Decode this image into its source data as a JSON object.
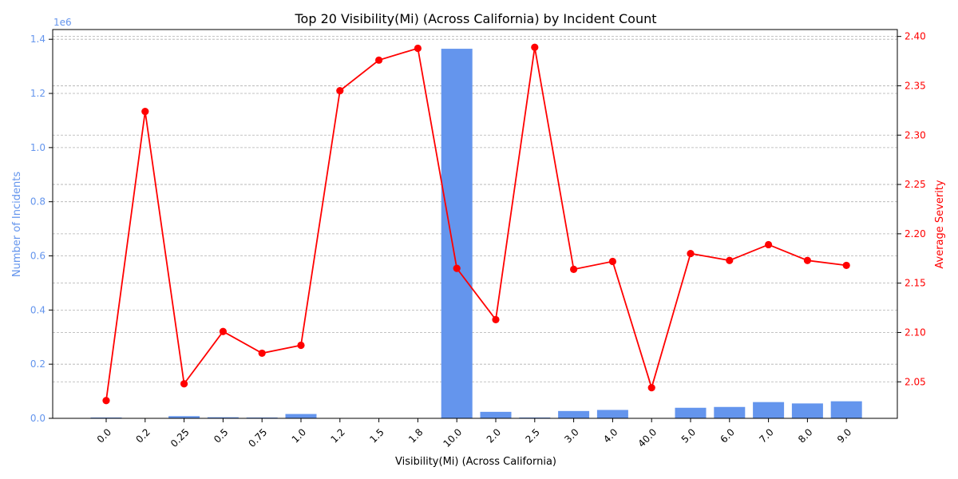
{
  "chart_data": {
    "type": "bar+line",
    "title": "Top 20 Visibility(Mi) (Across California) by Incident Count",
    "xlabel": "Visibility(Mi) (Across California)",
    "categories": [
      "0.0",
      "0.2",
      "0.25",
      "0.5",
      "0.75",
      "1.0",
      "1.2",
      "1.5",
      "1.8",
      "10.0",
      "2.0",
      "2.5",
      "3.0",
      "4.0",
      "40.0",
      "5.0",
      "6.0",
      "7.0",
      "8.0",
      "9.0"
    ],
    "left_axis": {
      "label": "Number of Incidents",
      "offset_label": "1e6",
      "ticks": [
        {
          "value": 0,
          "label": "0.0"
        },
        {
          "value": 200000,
          "label": "0.2"
        },
        {
          "value": 400000,
          "label": "0.4"
        },
        {
          "value": 600000,
          "label": "0.6"
        },
        {
          "value": 800000,
          "label": "0.8"
        },
        {
          "value": 1000000,
          "label": "1.0"
        },
        {
          "value": 1200000,
          "label": "1.2"
        },
        {
          "value": 1400000,
          "label": "1.4"
        }
      ],
      "ylim": [
        0,
        1436000
      ],
      "color": "#6495ED"
    },
    "right_axis": {
      "label": "Average Severity",
      "ticks": [
        {
          "value": 2.05,
          "label": "2.05"
        },
        {
          "value": 2.1,
          "label": "2.10"
        },
        {
          "value": 2.15,
          "label": "2.15"
        },
        {
          "value": 2.2,
          "label": "2.20"
        },
        {
          "value": 2.25,
          "label": "2.25"
        },
        {
          "value": 2.3,
          "label": "2.30"
        },
        {
          "value": 2.35,
          "label": "2.35"
        },
        {
          "value": 2.4,
          "label": "2.40"
        }
      ],
      "ylim": [
        2.013,
        2.407
      ],
      "color": "#FF0000"
    },
    "series": [
      {
        "kind": "bar",
        "axis": "left",
        "color": "#6495ED",
        "values": [
          3000,
          1000,
          8000,
          4000,
          3000,
          16000,
          1000,
          1000,
          1000,
          1365000,
          24000,
          3000,
          27000,
          31000,
          1000,
          39000,
          42000,
          60000,
          55000,
          63000
        ]
      },
      {
        "kind": "line",
        "axis": "right",
        "color": "#FF0000",
        "values": [
          2.031,
          2.324,
          2.048,
          2.101,
          2.079,
          2.087,
          2.345,
          2.376,
          2.388,
          2.165,
          2.113,
          2.389,
          2.164,
          2.172,
          2.044,
          2.18,
          2.173,
          2.189,
          2.173,
          2.168
        ]
      }
    ],
    "grid": "horizontal-right-axis"
  }
}
